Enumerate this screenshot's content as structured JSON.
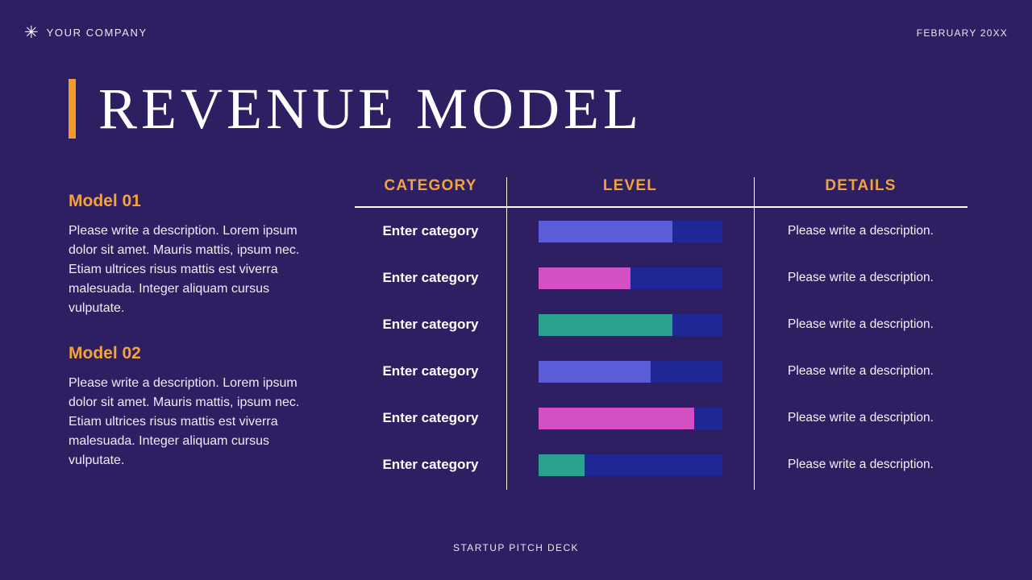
{
  "colors": {
    "background": "#2e1f62",
    "accent_orange": "#f2a33c",
    "title_bar_orange": "#f49b2b",
    "bar_track": "#1f2797",
    "bar_indigo": "#5a5cd8",
    "bar_magenta": "#d44fc4",
    "bar_teal": "#2aa18f"
  },
  "header": {
    "logo_icon": "asterisk-icon",
    "logo_glyph": "✳",
    "company_name": "YOUR COMPANY",
    "date": "FEBRUARY 20XX"
  },
  "title": "REVENUE MODEL",
  "models": [
    {
      "heading": "Model 01",
      "body": "Please write a description. Lorem ipsum dolor sit amet. Mauris mattis, ipsum nec. Etiam ultrices risus mattis est viverra malesuada. Integer aliquam cursus vulputate."
    },
    {
      "heading": "Model 02",
      "body": "Please write a description. Lorem ipsum dolor sit amet. Mauris mattis, ipsum nec. Etiam ultrices risus mattis est viverra malesuada. Integer aliquam cursus vulputate."
    }
  ],
  "table": {
    "columns": [
      "CATEGORY",
      "LEVEL",
      "DETAILS"
    ],
    "rows": [
      {
        "category": "Enter category",
        "level_percent": 73,
        "level_color": "#5a5cd8",
        "details": "Please write a description."
      },
      {
        "category": "Enter category",
        "level_percent": 50,
        "level_color": "#d44fc4",
        "details": "Please write a description."
      },
      {
        "category": "Enter category",
        "level_percent": 73,
        "level_color": "#2aa18f",
        "details": "Please write a description."
      },
      {
        "category": "Enter category",
        "level_percent": 61,
        "level_color": "#5a5cd8",
        "details": "Please write a description."
      },
      {
        "category": "Enter category",
        "level_percent": 85,
        "level_color": "#d44fc4",
        "details": "Please write a description."
      },
      {
        "category": "Enter category",
        "level_percent": 25,
        "level_color": "#2aa18f",
        "details": "Please write a description."
      }
    ]
  },
  "footer": "STARTUP PITCH DECK"
}
